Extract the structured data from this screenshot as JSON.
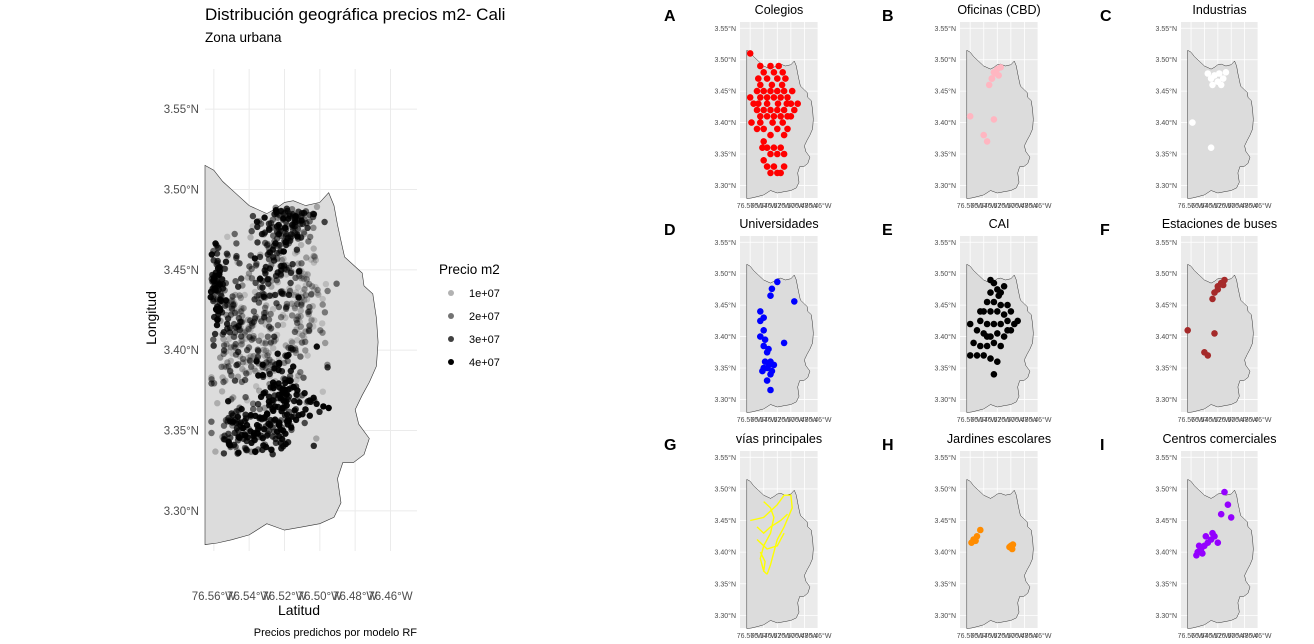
{
  "chart_data": [
    {
      "type": "scatter",
      "panel": "main",
      "title": "Distribución geográfica precios m2- Cali",
      "subtitle": "Zona urbana",
      "xlabel": "Latitud",
      "ylabel": "Longitud",
      "caption": "Precios predichos por modelo RF",
      "x_ticks": [
        "76.56°W",
        "76.54°W",
        "76.52°W",
        "76.50°W",
        "76.48°W",
        "76.46°W"
      ],
      "y_ticks": [
        "3.30°N",
        "3.35°N",
        "3.40°N",
        "3.45°N",
        "3.50°N",
        "3.55°N"
      ],
      "xlim": [
        -76.565,
        -76.445
      ],
      "ylim": [
        3.275,
        3.575
      ],
      "grid": true,
      "legend": {
        "title": "Precio m2",
        "position": "right",
        "entries": [
          "1e+07",
          "2e+07",
          "3e+07",
          "4e+07"
        ]
      },
      "point_color": "#000000",
      "region_fill": "#dcdcdc",
      "clusters": [
        {
          "x": -76.558,
          "y": 3.44,
          "sx": 0.003,
          "sy": 0.012,
          "n": 70,
          "dark": 0.85
        },
        {
          "x": -76.55,
          "y": 3.395,
          "sx": 0.006,
          "sy": 0.035,
          "n": 90,
          "dark": 0.5
        },
        {
          "x": -76.545,
          "y": 3.425,
          "sx": 0.006,
          "sy": 0.02,
          "n": 80,
          "dark": 0.35
        },
        {
          "x": -76.525,
          "y": 3.46,
          "sx": 0.006,
          "sy": 0.018,
          "n": 120,
          "dark": 0.7
        },
        {
          "x": -76.51,
          "y": 3.43,
          "sx": 0.007,
          "sy": 0.025,
          "n": 130,
          "dark": 0.25
        },
        {
          "x": -76.52,
          "y": 3.37,
          "sx": 0.008,
          "sy": 0.015,
          "n": 150,
          "dark": 0.85
        },
        {
          "x": -76.54,
          "y": 3.35,
          "sx": 0.01,
          "sy": 0.008,
          "n": 90,
          "dark": 0.75
        },
        {
          "x": -76.53,
          "y": 3.4,
          "sx": 0.01,
          "sy": 0.02,
          "n": 120,
          "dark": 0.3
        },
        {
          "x": -76.515,
          "y": 3.48,
          "sx": 0.008,
          "sy": 0.006,
          "n": 60,
          "dark": 0.7
        }
      ],
      "extra_points": [
        {
          "x": -76.498,
          "y": 3.365,
          "v": 40000000.0
        },
        {
          "x": -76.495,
          "y": 3.364,
          "v": 40000000.0
        },
        {
          "x": -76.502,
          "y": 3.345,
          "v": 10000000.0
        }
      ]
    },
    {
      "type": "scatter",
      "panel": "small",
      "tag": "A",
      "title": "Colegios",
      "color": "#ff0000",
      "points": [
        [
          -76.548,
          3.47
        ],
        [
          -76.545,
          3.46
        ],
        [
          -76.54,
          3.48
        ],
        [
          -76.535,
          3.47
        ],
        [
          -76.53,
          3.49
        ],
        [
          -76.525,
          3.48
        ],
        [
          -76.52,
          3.47
        ],
        [
          -76.518,
          3.49
        ],
        [
          -76.512,
          3.48
        ],
        [
          -76.508,
          3.47
        ],
        [
          -76.55,
          3.45
        ],
        [
          -76.545,
          3.44
        ],
        [
          -76.54,
          3.45
        ],
        [
          -76.535,
          3.44
        ],
        [
          -76.53,
          3.45
        ],
        [
          -76.525,
          3.44
        ],
        [
          -76.52,
          3.45
        ],
        [
          -76.515,
          3.44
        ],
        [
          -76.51,
          3.45
        ],
        [
          -76.505,
          3.44
        ],
        [
          -76.5,
          3.43
        ],
        [
          -76.495,
          3.42
        ],
        [
          -76.49,
          3.43
        ],
        [
          -76.555,
          3.43
        ],
        [
          -76.55,
          3.42
        ],
        [
          -76.545,
          3.41
        ],
        [
          -76.54,
          3.42
        ],
        [
          -76.535,
          3.41
        ],
        [
          -76.53,
          3.42
        ],
        [
          -76.525,
          3.41
        ],
        [
          -76.52,
          3.42
        ],
        [
          -76.515,
          3.41
        ],
        [
          -76.51,
          3.42
        ],
        [
          -76.505,
          3.41
        ],
        [
          -76.5,
          3.41
        ],
        [
          -76.558,
          3.4
        ],
        [
          -76.55,
          3.39
        ],
        [
          -76.545,
          3.4
        ],
        [
          -76.54,
          3.39
        ],
        [
          -76.53,
          3.38
        ],
        [
          -76.52,
          3.39
        ],
        [
          -76.51,
          3.38
        ],
        [
          -76.505,
          3.39
        ],
        [
          -76.54,
          3.37
        ],
        [
          -76.535,
          3.36
        ],
        [
          -76.525,
          3.36
        ],
        [
          -76.52,
          3.35
        ],
        [
          -76.515,
          3.36
        ],
        [
          -76.51,
          3.35
        ],
        [
          -76.53,
          3.35
        ],
        [
          -76.54,
          3.34
        ],
        [
          -76.535,
          3.33
        ],
        [
          -76.525,
          3.33
        ],
        [
          -76.515,
          3.32
        ],
        [
          -76.51,
          3.33
        ],
        [
          -76.53,
          3.32
        ],
        [
          -76.56,
          3.51
        ],
        [
          -76.545,
          3.49
        ],
        [
          -76.528,
          3.46
        ],
        [
          -76.513,
          3.46
        ],
        [
          -76.498,
          3.45
        ],
        [
          -76.56,
          3.44
        ],
        [
          -76.535,
          3.43
        ],
        [
          -76.519,
          3.43
        ],
        [
          -76.548,
          3.43
        ],
        [
          -76.506,
          3.43
        ],
        [
          -76.542,
          3.36
        ],
        [
          -76.52,
          3.32
        ],
        [
          -76.512,
          3.4
        ],
        [
          -76.527,
          3.4
        ]
      ]
    },
    {
      "type": "scatter",
      "panel": "small",
      "tag": "B",
      "title": "Oficinas (CBD)",
      "color": "#ffb6c1",
      "points": [
        [
          -76.525,
          3.48
        ],
        [
          -76.52,
          3.485
        ],
        [
          -76.518,
          3.475
        ],
        [
          -76.528,
          3.47
        ],
        [
          -76.532,
          3.46
        ],
        [
          -76.522,
          3.478
        ],
        [
          -76.515,
          3.488
        ],
        [
          -76.528,
          3.47
        ],
        [
          -76.56,
          3.41
        ],
        [
          -76.54,
          3.38
        ],
        [
          -76.535,
          3.37
        ],
        [
          -76.525,
          3.405
        ]
      ]
    },
    {
      "type": "scatter",
      "panel": "small",
      "tag": "C",
      "title": "Industrias",
      "color": "#ffffff",
      "points": [
        [
          -76.53,
          3.47
        ],
        [
          -76.525,
          3.475
        ],
        [
          -76.52,
          3.465
        ],
        [
          -76.518,
          3.478
        ],
        [
          -76.512,
          3.47
        ],
        [
          -76.508,
          3.48
        ],
        [
          -76.535,
          3.478
        ],
        [
          -76.528,
          3.46
        ],
        [
          -76.515,
          3.46
        ],
        [
          -76.558,
          3.4
        ],
        [
          -76.53,
          3.36
        ]
      ]
    },
    {
      "type": "scatter",
      "panel": "small",
      "tag": "D",
      "title": "Universidades",
      "color": "#0000ff",
      "points": [
        [
          -76.52,
          3.487
        ],
        [
          -76.528,
          3.476
        ],
        [
          -76.53,
          3.465
        ],
        [
          -76.495,
          3.456
        ],
        [
          -76.54,
          3.43
        ],
        [
          -76.545,
          3.425
        ],
        [
          -76.54,
          3.41
        ],
        [
          -76.545,
          3.4
        ],
        [
          -76.538,
          3.395
        ],
        [
          -76.54,
          3.385
        ],
        [
          -76.535,
          3.375
        ],
        [
          -76.538,
          3.36
        ],
        [
          -76.53,
          3.36
        ],
        [
          -76.535,
          3.35
        ],
        [
          -76.528,
          3.345
        ],
        [
          -76.54,
          3.35
        ],
        [
          -76.532,
          3.355
        ],
        [
          -76.53,
          3.34
        ],
        [
          -76.535,
          3.33
        ],
        [
          -76.53,
          3.315
        ],
        [
          -76.51,
          3.39
        ],
        [
          -76.545,
          3.44
        ],
        [
          -76.542,
          3.345
        ],
        [
          -76.525,
          3.355
        ],
        [
          -76.533,
          3.38
        ]
      ]
    },
    {
      "type": "scatter",
      "panel": "small",
      "tag": "E",
      "title": "CAI",
      "color": "#000000",
      "points": [
        [
          -76.525,
          3.485
        ],
        [
          -76.52,
          3.475
        ],
        [
          -76.53,
          3.47
        ],
        [
          -76.518,
          3.465
        ],
        [
          -76.51,
          3.48
        ],
        [
          -76.535,
          3.455
        ],
        [
          -76.525,
          3.455
        ],
        [
          -76.515,
          3.45
        ],
        [
          -76.505,
          3.45
        ],
        [
          -76.54,
          3.44
        ],
        [
          -76.53,
          3.44
        ],
        [
          -76.52,
          3.44
        ],
        [
          -76.51,
          3.435
        ],
        [
          -76.5,
          3.44
        ],
        [
          -76.545,
          3.425
        ],
        [
          -76.535,
          3.42
        ],
        [
          -76.525,
          3.42
        ],
        [
          -76.515,
          3.42
        ],
        [
          -76.505,
          3.425
        ],
        [
          -76.495,
          3.42
        ],
        [
          -76.49,
          3.425
        ],
        [
          -76.55,
          3.41
        ],
        [
          -76.54,
          3.405
        ],
        [
          -76.53,
          3.4
        ],
        [
          -76.52,
          3.405
        ],
        [
          -76.51,
          3.4
        ],
        [
          -76.5,
          3.41
        ],
        [
          -76.555,
          3.39
        ],
        [
          -76.545,
          3.385
        ],
        [
          -76.535,
          3.385
        ],
        [
          -76.525,
          3.39
        ],
        [
          -76.515,
          3.385
        ],
        [
          -76.56,
          3.37
        ],
        [
          -76.55,
          3.37
        ],
        [
          -76.54,
          3.37
        ],
        [
          -76.53,
          3.365
        ],
        [
          -76.52,
          3.36
        ],
        [
          -76.525,
          3.34
        ],
        [
          -76.56,
          3.42
        ],
        [
          -76.545,
          3.44
        ],
        [
          -76.515,
          3.47
        ],
        [
          -76.53,
          3.49
        ],
        [
          -76.505,
          3.41
        ],
        [
          -76.535,
          3.4
        ]
      ]
    },
    {
      "type": "scatter",
      "panel": "small",
      "tag": "F",
      "title": "Estaciones de buses",
      "color": "#a52a2a",
      "points": [
        [
          -76.525,
          3.47
        ],
        [
          -76.52,
          3.48
        ],
        [
          -76.515,
          3.485
        ],
        [
          -76.51,
          3.49
        ],
        [
          -76.528,
          3.46
        ],
        [
          -76.52,
          3.475
        ],
        [
          -76.512,
          3.482
        ],
        [
          -76.565,
          3.41
        ],
        [
          -76.525,
          3.405
        ],
        [
          -76.54,
          3.375
        ],
        [
          -76.535,
          3.37
        ]
      ]
    },
    {
      "type": "line",
      "panel": "small",
      "tag": "G",
      "title": "vías principales",
      "color": "#ffff00",
      "paths": [
        [
          [
            -76.56,
            3.45
          ],
          [
            -76.54,
            3.455
          ],
          [
            -76.52,
            3.475
          ],
          [
            -76.51,
            3.49
          ],
          [
            -76.5,
            3.49
          ],
          [
            -76.498,
            3.47
          ],
          [
            -76.51,
            3.44
          ],
          [
            -76.52,
            3.42
          ],
          [
            -76.525,
            3.4
          ],
          [
            -76.53,
            3.38
          ],
          [
            -76.535,
            3.365
          ]
        ],
        [
          [
            -76.54,
            3.48
          ],
          [
            -76.53,
            3.47
          ],
          [
            -76.525,
            3.455
          ],
          [
            -76.53,
            3.43
          ],
          [
            -76.54,
            3.41
          ],
          [
            -76.545,
            3.39
          ],
          [
            -76.54,
            3.37
          ]
        ],
        [
          [
            -76.55,
            3.44
          ],
          [
            -76.54,
            3.43
          ],
          [
            -76.53,
            3.44
          ],
          [
            -76.515,
            3.45
          ],
          [
            -76.505,
            3.46
          ]
        ],
        [
          [
            -76.55,
            3.42
          ],
          [
            -76.535,
            3.405
          ],
          [
            -76.52,
            3.41
          ],
          [
            -76.51,
            3.43
          ]
        ],
        [
          [
            -76.545,
            3.4
          ],
          [
            -76.538,
            3.385
          ],
          [
            -76.54,
            3.37
          ],
          [
            -76.535,
            3.365
          ]
        ]
      ]
    },
    {
      "type": "scatter",
      "panel": "small",
      "tag": "H",
      "title": "Jardines escolares",
      "color": "#ff8c00",
      "points": [
        [
          -76.555,
          3.42
        ],
        [
          -76.552,
          3.418
        ],
        [
          -76.55,
          3.425
        ],
        [
          -76.558,
          3.415
        ],
        [
          -76.545,
          3.435
        ],
        [
          -76.5,
          3.41
        ],
        [
          -76.498,
          3.405
        ],
        [
          -76.502,
          3.408
        ],
        [
          -76.497,
          3.412
        ]
      ]
    },
    {
      "type": "scatter",
      "panel": "small",
      "tag": "I",
      "title": "Centros comerciales",
      "color": "#9400ff",
      "points": [
        [
          -76.51,
          3.495
        ],
        [
          -76.505,
          3.475
        ],
        [
          -76.515,
          3.46
        ],
        [
          -76.5,
          3.455
        ],
        [
          -76.525,
          3.425
        ],
        [
          -76.53,
          3.42
        ],
        [
          -76.535,
          3.415
        ],
        [
          -76.54,
          3.41
        ],
        [
          -76.545,
          3.405
        ],
        [
          -76.55,
          3.4
        ],
        [
          -76.552,
          3.395
        ],
        [
          -76.548,
          3.41
        ],
        [
          -76.52,
          3.415
        ],
        [
          -76.538,
          3.425
        ],
        [
          -76.528,
          3.43
        ],
        [
          -76.543,
          3.398
        ]
      ]
    }
  ]
}
